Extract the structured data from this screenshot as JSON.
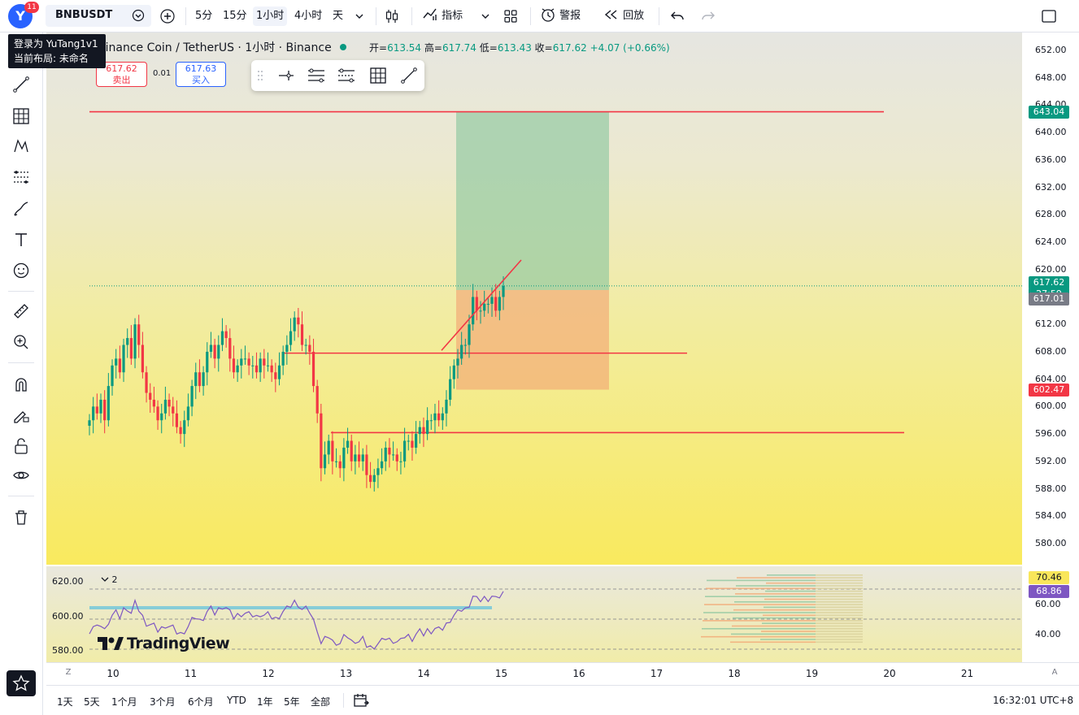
{
  "topbar": {
    "avatar_letter": "Y",
    "notification_count": "11",
    "symbol": "BNBUSDT",
    "intervals": [
      "5分",
      "15分",
      "1小时",
      "4小时",
      "天"
    ],
    "active_interval": "1小时",
    "indicators_label": "指标",
    "alert_label": "警报",
    "replay_label": "回放"
  },
  "tooltip": {
    "line1": "登录为 YuTang1v1",
    "line2": "当前布局: 未命名"
  },
  "legend": {
    "title": "Binance Coin / TetherUS · 1小时 · Binance",
    "open_label": "开=",
    "open": "613.54",
    "high_label": "高=",
    "high": "617.74",
    "low_label": "低=",
    "low": "613.43",
    "close_label": "收=",
    "close": "617.62",
    "change": "+4.07 (+0.66%)"
  },
  "trade": {
    "sell_price": "617.62",
    "sell_label": "卖出",
    "spread": "0.01",
    "buy_price": "617.63",
    "buy_label": "买入"
  },
  "price_axis": {
    "labels": [
      "652.00",
      "648.00",
      "644.00",
      "640.00",
      "636.00",
      "632.00",
      "628.00",
      "624.00",
      "620.00",
      "616.00",
      "612.00",
      "608.00",
      "604.00",
      "600.00",
      "596.00",
      "592.00",
      "588.00",
      "584.00",
      "580.00"
    ],
    "tag_target": "643.04",
    "tag_last": "617.62",
    "tag_countdown": "27:59",
    "tag_prev": "617.01",
    "tag_stop": "602.47"
  },
  "sub_pane": {
    "left_labels": [
      "620.00",
      "600.00",
      "580.00"
    ],
    "right_labels": [
      "60.00",
      "40.00"
    ],
    "tag_high": "70.46",
    "tag_rsi": "68.86",
    "collapsed_count": "2",
    "watermark": "TradingView"
  },
  "time_axis": {
    "labels": [
      "10",
      "11",
      "12",
      "13",
      "14",
      "15",
      "16",
      "17",
      "18",
      "19",
      "20",
      "21"
    ],
    "left_btn": "Z",
    "right_btn": "A"
  },
  "bottombar": {
    "ranges": [
      "1天",
      "5天",
      "1个月",
      "3个月",
      "6个月",
      "YTD",
      "1年",
      "5年",
      "全部"
    ],
    "clock": "16:32:01 UTC+8"
  },
  "colors": {
    "up": "#089981",
    "down": "#f23645",
    "accent": "#2962ff",
    "line_red": "#f23645"
  },
  "chart_data": {
    "type": "candlestick",
    "price_range": [
      578,
      654
    ],
    "last_price": 617.62,
    "horizontal_levels": [
      643.04,
      607.8,
      596.2
    ],
    "position_box": {
      "entry": 617.01,
      "target": 643.04,
      "stop": 602.47
    },
    "closes": [
      598,
      600,
      599,
      601,
      598,
      603,
      606,
      607,
      605,
      609,
      610,
      607,
      612,
      609,
      605,
      602,
      601,
      600,
      598,
      599,
      601,
      600,
      599,
      597,
      596,
      598,
      600,
      603,
      605,
      603,
      605,
      608,
      609,
      607,
      609,
      611,
      610,
      607,
      605,
      606,
      607,
      607,
      606,
      606,
      605,
      607,
      606,
      606,
      605,
      604,
      606,
      608,
      609,
      611,
      613,
      612,
      609,
      609,
      608,
      603,
      599,
      591,
      593,
      595,
      592,
      592,
      591,
      594,
      595,
      592,
      593,
      592,
      593,
      590,
      589,
      590,
      591,
      592,
      594,
      593,
      593,
      592,
      592,
      595,
      595,
      594,
      596,
      597,
      596,
      598,
      598,
      599,
      598,
      599,
      601,
      604,
      606,
      607,
      609,
      609,
      612,
      616,
      614,
      614,
      615,
      615,
      616,
      614,
      616,
      617.62
    ]
  }
}
